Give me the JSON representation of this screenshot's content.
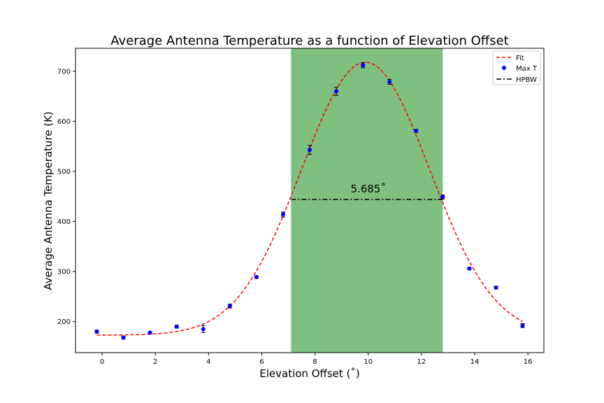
{
  "chart_data": {
    "type": "scatter",
    "title": "Average Antenna Temperature as a function of Elevation Offset",
    "xlabel": "Elevation Offset (˚)",
    "ylabel": "Average Antenna Temperature (K)",
    "xlim": [
      -1,
      16.6
    ],
    "ylim": [
      138,
      746
    ],
    "xticks": [
      0,
      2,
      4,
      6,
      8,
      10,
      12,
      14,
      16
    ],
    "yticks": [
      200,
      300,
      400,
      500,
      600,
      700
    ],
    "grid": false,
    "legend_position": "top-right",
    "series": [
      {
        "name": "Max T",
        "kind": "scatter",
        "color": "#0000ff",
        "x": [
          -0.2,
          0.8,
          1.8,
          2.8,
          3.8,
          4.8,
          5.8,
          6.8,
          7.8,
          8.8,
          9.8,
          10.8,
          11.8,
          12.8,
          13.8,
          14.8,
          15.8
        ],
        "y": [
          180,
          168,
          178,
          190,
          185,
          231,
          289,
          414,
          543,
          660,
          712,
          679,
          581,
          449,
          306,
          268,
          192
        ],
        "yerr": [
          3,
          3,
          2,
          3,
          7,
          4,
          2,
          5,
          9,
          8,
          5,
          5,
          3,
          4,
          2,
          2,
          4
        ]
      },
      {
        "name": "Fit",
        "kind": "line",
        "style": "dashed",
        "color": "#ff0000",
        "baseline": 173,
        "amplitude": 545,
        "center": 9.9,
        "sigma": 2.41,
        "x_range": [
          -0.2,
          15.8
        ]
      },
      {
        "name": "HPBW",
        "kind": "line",
        "style": "dash-dot",
        "color": "#000000",
        "x": [
          7.1,
          12.8
        ],
        "y": [
          444,
          444
        ]
      }
    ],
    "shaded_region": {
      "x": [
        7.1,
        12.8
      ],
      "color": "#008000",
      "opacity": 0.5
    },
    "annotations": [
      {
        "text": "5.685˚",
        "x": 10.0,
        "y": 458
      }
    ]
  }
}
